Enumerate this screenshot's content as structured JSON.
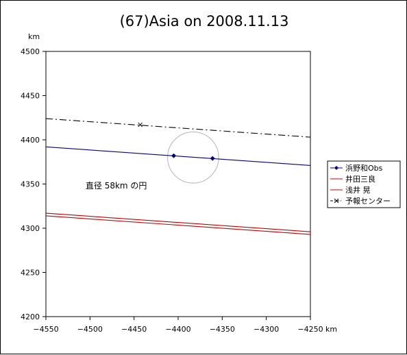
{
  "chart_data": {
    "type": "line",
    "title": "(67)Asia on 2008.11.13",
    "x_unit": "km",
    "y_unit": "km",
    "xlim": [
      -4550,
      -4250
    ],
    "ylim": [
      4200,
      4500
    ],
    "x_ticks": [
      -4550,
      -4500,
      -4450,
      -4400,
      -4350,
      -4300,
      -4250
    ],
    "y_ticks": [
      4200,
      4250,
      4300,
      4350,
      4400,
      4450,
      4500
    ],
    "x_tick_labels": [
      "−4550",
      "−4500",
      "−4450",
      "−4400",
      "−4350",
      "−4300",
      "−4250"
    ],
    "y_tick_labels": [
      "4200",
      "4250",
      "4300",
      "4350",
      "4400",
      "4450",
      "4500"
    ],
    "series": [
      {
        "name": "浜野和Obs",
        "color": "#000080",
        "style": "solid",
        "marker": "diamond",
        "line": [
          [
            -4550,
            4392
          ],
          [
            -4250,
            4371
          ]
        ],
        "points": [
          [
            -4405,
            4382
          ],
          [
            -4361,
            4379
          ]
        ]
      },
      {
        "name": "井田三良",
        "color": "#c00000",
        "style": "solid",
        "line": [
          [
            -4550,
            4317
          ],
          [
            -4250,
            4296
          ]
        ]
      },
      {
        "name": "浅井 晃",
        "color": "#c00000",
        "style": "solid",
        "line": [
          [
            -4550,
            4314
          ],
          [
            -4250,
            4293
          ]
        ]
      },
      {
        "name": "予報センター",
        "color": "#000000",
        "style": "dashdot",
        "line": [
          [
            -4550,
            4424
          ],
          [
            -4250,
            4403
          ]
        ],
        "points": [
          [
            -4443,
            4417
          ]
        ]
      }
    ],
    "circle": {
      "center": [
        -4383,
        4380
      ],
      "diameter": 58,
      "color": "#c0c0c0"
    },
    "annotation": {
      "text": "直径 58km の円",
      "x": -4505,
      "y": 4345
    },
    "legend_position": "right",
    "grid": false
  }
}
